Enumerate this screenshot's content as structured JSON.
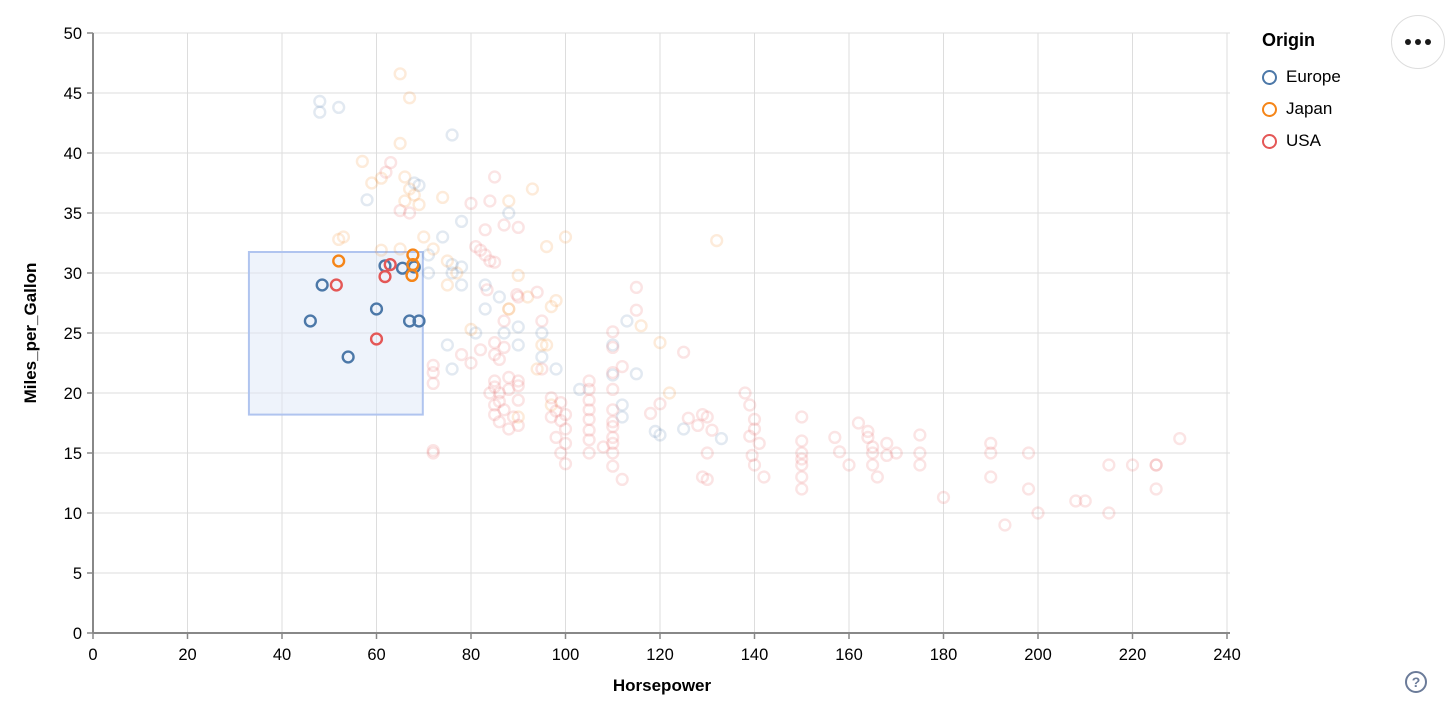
{
  "chart_data": {
    "type": "scatter",
    "xlabel": "Horsepower",
    "ylabel": "Miles_per_Gallon",
    "xlim": [
      0,
      240
    ],
    "xtick_step": 20,
    "ylim": [
      0,
      50
    ],
    "ytick_step": 5,
    "grid": true,
    "legend": {
      "title": "Origin",
      "position": "top-right",
      "entries": [
        {
          "label": "Europe",
          "color": "#4c78a8"
        },
        {
          "label": "Japan",
          "color": "#f58518"
        },
        {
          "label": "USA",
          "color": "#e45756"
        }
      ]
    },
    "brush": {
      "x": [
        33,
        69.8
      ],
      "y": [
        18.2,
        31.75
      ],
      "fill": "#dde8f8",
      "stroke": "#b0c4ef"
    },
    "point_style": {
      "shape": "ring",
      "radius": 5.4,
      "stroke_width": 2.4,
      "faded_opacity": 0.16,
      "selected_opacity": 1
    },
    "series": [
      {
        "name": "Europe",
        "color": "#4c78a8",
        "selected": [
          [
            46,
            26
          ],
          [
            48.5,
            29
          ],
          [
            54,
            23
          ],
          [
            60,
            27
          ],
          [
            61.8,
            30.6
          ],
          [
            65.5,
            30.4
          ],
          [
            68,
            30.5
          ],
          [
            67,
            26
          ],
          [
            69,
            26
          ]
        ],
        "points": [
          [
            87,
            25
          ],
          [
            90,
            24
          ],
          [
            95,
            25
          ],
          [
            113,
            26
          ],
          [
            112,
            19
          ],
          [
            112,
            18
          ],
          [
            120,
            16.5
          ],
          [
            76,
            30
          ],
          [
            71,
            30
          ],
          [
            76,
            22
          ],
          [
            83,
            29
          ],
          [
            95,
            23
          ],
          [
            98,
            22
          ],
          [
            110,
            24
          ],
          [
            86,
            28
          ],
          [
            81,
            25
          ],
          [
            83,
            27
          ],
          [
            78,
            29
          ],
          [
            78,
            30.5
          ],
          [
            110,
            21.5
          ],
          [
            71,
            31.5
          ],
          [
            103,
            20.3
          ],
          [
            125,
            17
          ],
          [
            115,
            21.6
          ],
          [
            133,
            16.2
          ],
          [
            58,
            36.1
          ],
          [
            78,
            34.3
          ],
          [
            74,
            33
          ],
          [
            76,
            30.7
          ],
          [
            69,
            37.3
          ],
          [
            48,
            44.3
          ],
          [
            48,
            43.4
          ],
          [
            52,
            43.8
          ],
          [
            76,
            41.5
          ],
          [
            88,
            35
          ],
          [
            68,
            37.5
          ],
          [
            75,
            24
          ],
          [
            90,
            25.5
          ],
          [
            119,
            16.8
          ]
        ]
      },
      {
        "name": "Japan",
        "color": "#f58518",
        "selected": [
          [
            52,
            31
          ],
          [
            67.7,
            31.5
          ],
          [
            67.7,
            30.7
          ],
          [
            67.5,
            29.8
          ]
        ],
        "points": [
          [
            95,
            24
          ],
          [
            88,
            27
          ],
          [
            88,
            27
          ],
          [
            92,
            28
          ],
          [
            94,
            22
          ],
          [
            97,
            19
          ],
          [
            90,
            18
          ],
          [
            75,
            29
          ],
          [
            65,
            32
          ],
          [
            96,
            24
          ],
          [
            53,
            33
          ],
          [
            52,
            32.8
          ],
          [
            61,
            31.9
          ],
          [
            65,
            46.6
          ],
          [
            67,
            44.6
          ],
          [
            65,
            40.8
          ],
          [
            57,
            39.3
          ],
          [
            59,
            37.5
          ],
          [
            61,
            37.9
          ],
          [
            66,
            38
          ],
          [
            67,
            37
          ],
          [
            68,
            36.5
          ],
          [
            66,
            36
          ],
          [
            69,
            35.7
          ],
          [
            74,
            36.3
          ],
          [
            93,
            37
          ],
          [
            88,
            36
          ],
          [
            100,
            33
          ],
          [
            96,
            32.2
          ],
          [
            90,
            29.8
          ],
          [
            98,
            27.7
          ],
          [
            116,
            25.6
          ],
          [
            120,
            24.2
          ],
          [
            122,
            20
          ],
          [
            132,
            32.7
          ],
          [
            75,
            31
          ],
          [
            72,
            32
          ],
          [
            70,
            33
          ],
          [
            77,
            30
          ],
          [
            97,
            27.2
          ],
          [
            80,
            25.3
          ]
        ]
      },
      {
        "name": "USA",
        "color": "#e45756",
        "selected": [
          [
            51.5,
            29
          ],
          [
            60,
            24.5
          ],
          [
            62.9,
            30.7
          ],
          [
            61.8,
            29.7
          ]
        ],
        "points": [
          [
            130,
            18
          ],
          [
            165,
            15
          ],
          [
            150,
            18
          ],
          [
            150,
            16
          ],
          [
            140,
            17
          ],
          [
            198,
            15
          ],
          [
            220,
            14
          ],
          [
            215,
            14
          ],
          [
            225,
            14
          ],
          [
            225,
            14
          ],
          [
            190,
            15
          ],
          [
            170,
            15
          ],
          [
            160,
            14
          ],
          [
            150,
            15
          ],
          [
            95,
            22
          ],
          [
            97,
            18
          ],
          [
            85,
            21
          ],
          [
            90,
            21
          ],
          [
            215,
            10
          ],
          [
            200,
            10
          ],
          [
            210,
            11
          ],
          [
            193,
            9
          ],
          [
            90,
            28
          ],
          [
            150,
            14
          ],
          [
            150,
            14.5
          ],
          [
            150,
            13
          ],
          [
            150,
            12
          ],
          [
            138,
            20
          ],
          [
            139,
            19
          ],
          [
            140,
            17.8
          ],
          [
            139,
            16.4
          ],
          [
            141,
            15.8
          ],
          [
            139.5,
            14.8
          ],
          [
            140,
            14
          ],
          [
            142,
            13
          ],
          [
            157,
            16.3
          ],
          [
            158,
            15.1
          ],
          [
            162,
            17.5
          ],
          [
            164,
            16.3
          ],
          [
            164,
            16.8
          ],
          [
            165,
            15.5
          ],
          [
            168,
            15.8
          ],
          [
            168,
            14.8
          ],
          [
            165,
            14
          ],
          [
            166,
            13
          ],
          [
            175,
            16.5
          ],
          [
            175,
            15
          ],
          [
            175,
            14
          ],
          [
            180,
            11.3
          ],
          [
            190,
            15.8
          ],
          [
            190,
            13
          ],
          [
            198,
            12
          ],
          [
            208,
            11
          ],
          [
            225,
            12
          ],
          [
            230,
            16.2
          ],
          [
            72,
            22.3
          ],
          [
            72,
            21.7
          ],
          [
            72,
            20.8
          ],
          [
            72,
            15
          ],
          [
            72,
            15.2
          ],
          [
            78,
            23.2
          ],
          [
            80,
            22.5
          ],
          [
            82,
            23.6
          ],
          [
            85,
            24.2
          ],
          [
            85,
            23.2
          ],
          [
            86,
            22.8
          ],
          [
            87,
            23.8
          ],
          [
            85,
            20.5
          ],
          [
            86,
            20
          ],
          [
            88,
            20.3
          ],
          [
            90,
            19.4
          ],
          [
            85,
            19
          ],
          [
            87,
            18.6
          ],
          [
            89,
            18
          ],
          [
            86,
            17.6
          ],
          [
            90,
            17.3
          ],
          [
            88,
            17
          ],
          [
            85,
            18.2
          ],
          [
            90,
            20.6
          ],
          [
            88,
            21.3
          ],
          [
            84,
            20
          ],
          [
            86,
            19.3
          ],
          [
            97,
            19.6
          ],
          [
            99,
            19.2
          ],
          [
            98,
            18.5
          ],
          [
            100,
            18.2
          ],
          [
            99,
            17.7
          ],
          [
            100,
            17
          ],
          [
            98,
            16.3
          ],
          [
            100,
            15.8
          ],
          [
            99,
            15
          ],
          [
            100,
            14.1
          ],
          [
            105,
            21
          ],
          [
            105,
            20.3
          ],
          [
            105,
            19.4
          ],
          [
            105,
            18.6
          ],
          [
            105,
            17.8
          ],
          [
            105,
            16.9
          ],
          [
            105,
            16.1
          ],
          [
            105,
            15
          ],
          [
            110,
            25.1
          ],
          [
            110,
            23.8
          ],
          [
            110,
            21.7
          ],
          [
            110,
            20.3
          ],
          [
            110,
            18.6
          ],
          [
            110,
            17.6
          ],
          [
            110,
            17.2
          ],
          [
            110,
            16.3
          ],
          [
            110,
            15.8
          ],
          [
            110,
            15
          ],
          [
            108,
            15.5
          ],
          [
            110,
            13.9
          ],
          [
            112,
            12.8
          ],
          [
            112,
            22.2
          ],
          [
            115,
            26.9
          ],
          [
            115,
            28.8
          ],
          [
            125,
            23.4
          ],
          [
            118,
            18.3
          ],
          [
            120,
            19.1
          ],
          [
            126,
            17.9
          ],
          [
            128,
            17.3
          ],
          [
            129,
            18.2
          ],
          [
            131,
            16.9
          ],
          [
            130,
            15
          ],
          [
            129,
            13
          ],
          [
            130,
            12.8
          ],
          [
            63,
            39.2
          ],
          [
            62,
            38.4
          ],
          [
            65,
            35.2
          ],
          [
            67,
            35
          ],
          [
            85,
            38
          ],
          [
            84,
            36
          ],
          [
            80,
            35.8
          ],
          [
            87,
            34
          ],
          [
            90,
            33.8
          ],
          [
            83,
            33.6
          ],
          [
            81,
            32.2
          ],
          [
            83,
            31.5
          ],
          [
            84,
            31
          ],
          [
            85,
            30.9
          ],
          [
            82,
            31.9
          ],
          [
            83.4,
            28.6
          ],
          [
            89.7,
            28.2
          ],
          [
            94,
            28.4
          ],
          [
            87,
            26
          ],
          [
            95,
            26
          ]
        ]
      }
    ]
  },
  "controls": {
    "menu_button": "actions menu",
    "help_label": "?"
  }
}
